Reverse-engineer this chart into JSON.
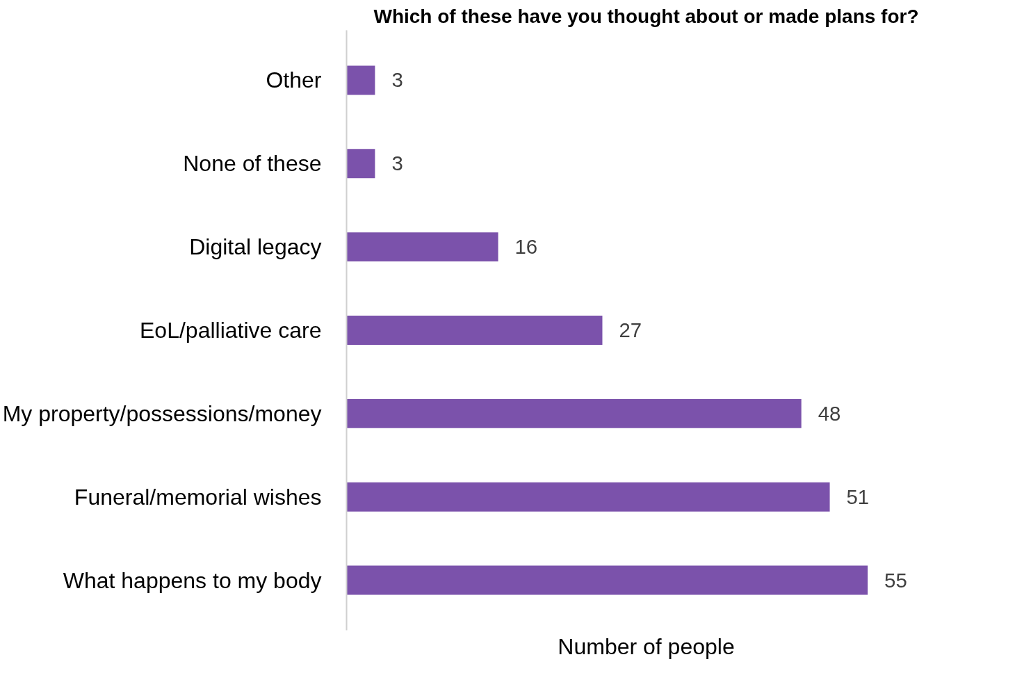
{
  "chart_data": {
    "type": "bar",
    "orientation": "horizontal",
    "title": "Which of these have you thought about or made plans for?",
    "xlabel": "Number of people",
    "categories": [
      "Other",
      "None of these",
      "Digital legacy",
      "EoL/palliative care",
      "My property/possessions/money",
      "Funeral/memorial wishes",
      "What happens to my body"
    ],
    "values": [
      3,
      3,
      16,
      27,
      48,
      51,
      55
    ],
    "color": "#7b52ab",
    "data_labels": true,
    "tick_labels": "y",
    "grid": false
  }
}
